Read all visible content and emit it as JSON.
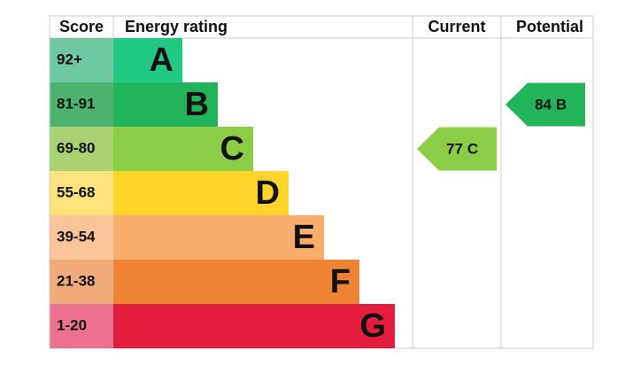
{
  "header": {
    "score": "Score",
    "rating": "Energy rating",
    "current": "Current",
    "potential": "Potential"
  },
  "bands": [
    {
      "score": "92+",
      "letter": "A",
      "color": "#22c985",
      "score_color": "#6ec8a1"
    },
    {
      "score": "81-91",
      "letter": "B",
      "color": "#21b45a",
      "score_color": "#4db46f"
    },
    {
      "score": "69-80",
      "letter": "C",
      "color": "#8ccd47",
      "score_color": "#a9d373"
    },
    {
      "score": "55-68",
      "letter": "D",
      "color": "#ffd42b",
      "score_color": "#fee37d"
    },
    {
      "score": "39-54",
      "letter": "E",
      "color": "#f8ad6c",
      "score_color": "#fbc59c"
    },
    {
      "score": "21-38",
      "letter": "F",
      "color": "#ec8434",
      "score_color": "#f1aa79"
    },
    {
      "score": "1-20",
      "letter": "G",
      "color": "#e31d3d",
      "score_color": "#ec7190"
    }
  ],
  "current": {
    "value": 77,
    "letter": "C"
  },
  "potential": {
    "value": 84,
    "letter": "B"
  }
}
